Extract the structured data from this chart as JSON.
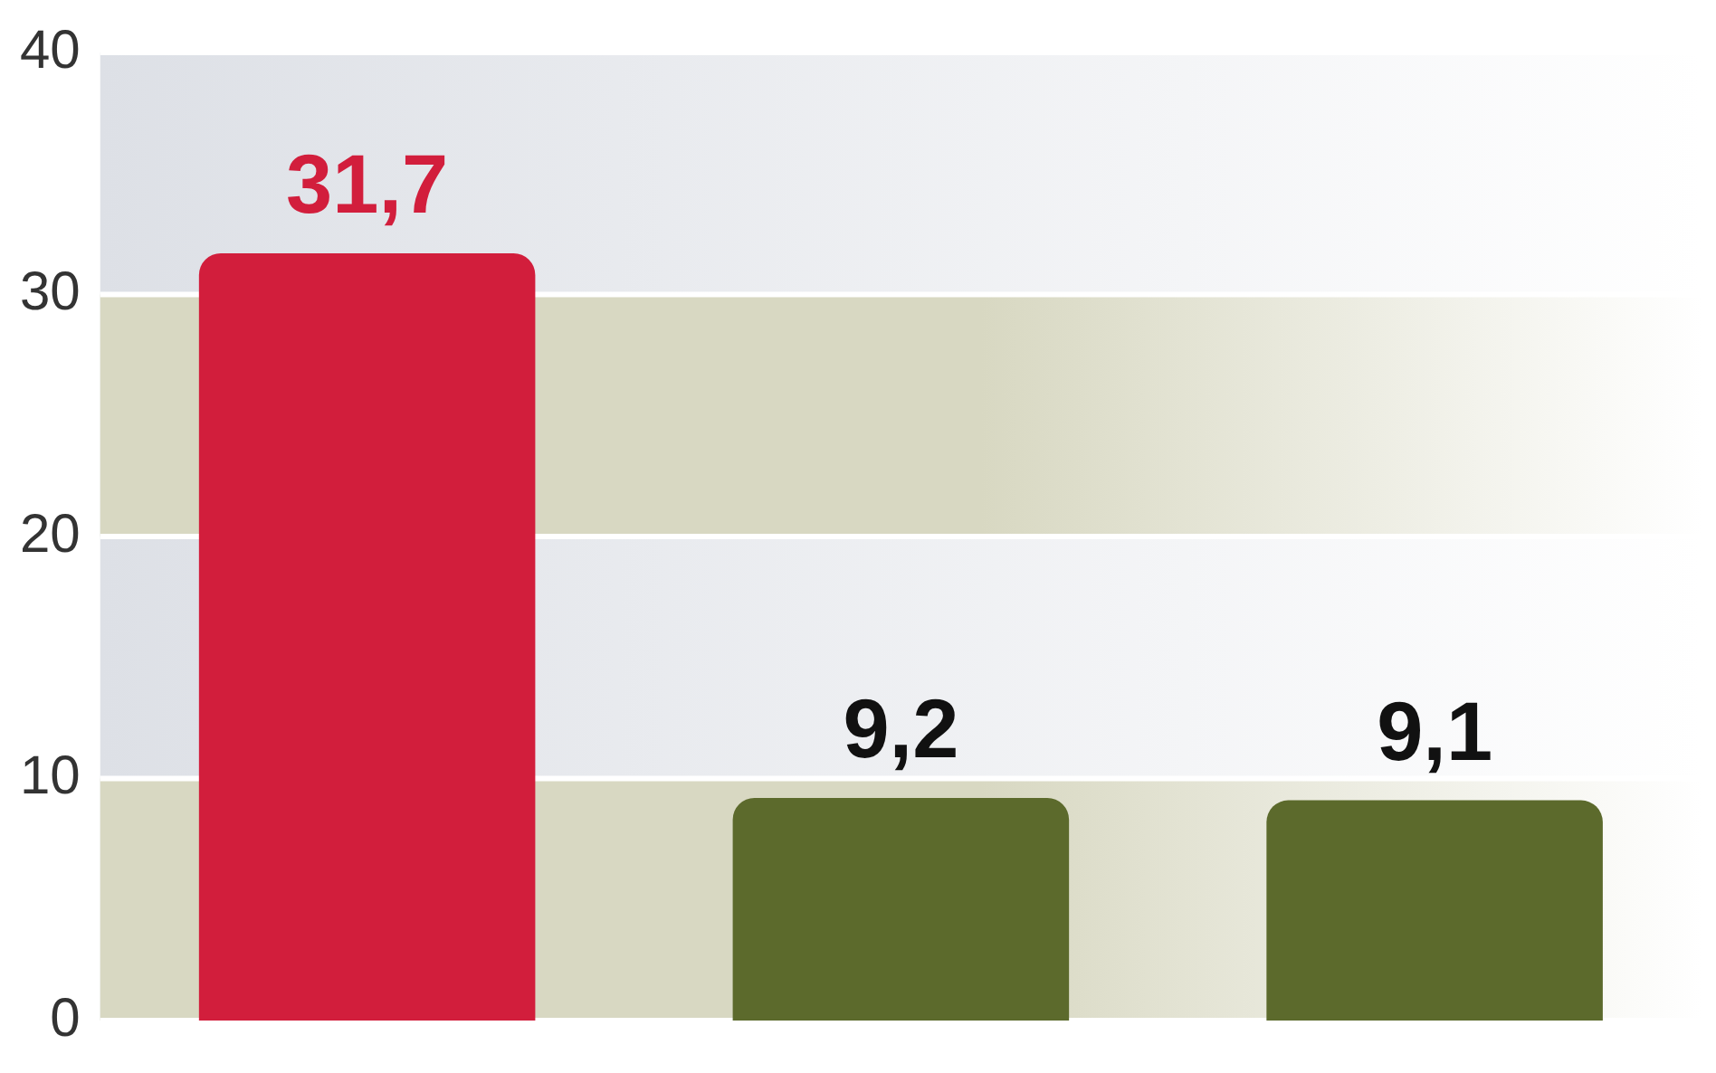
{
  "chart_data": {
    "type": "bar",
    "categories": [
      null,
      null,
      null
    ],
    "values": [
      31.7,
      9.2,
      9.1
    ],
    "colors": [
      "#d21e3c",
      "#5c6a2c",
      "#5c6a2c"
    ],
    "value_labels": [
      "31,7",
      "9,2",
      "9,1"
    ],
    "ylim": [
      0,
      40
    ],
    "yticks": [
      0,
      10,
      20,
      30,
      40
    ],
    "grid": "y",
    "bands": [
      {
        "axis": "y",
        "from": 0,
        "to": 10,
        "color": "#d8d8c2"
      },
      {
        "axis": "y",
        "from": 20,
        "to": 30,
        "color": "#d8d8c2"
      }
    ]
  }
}
